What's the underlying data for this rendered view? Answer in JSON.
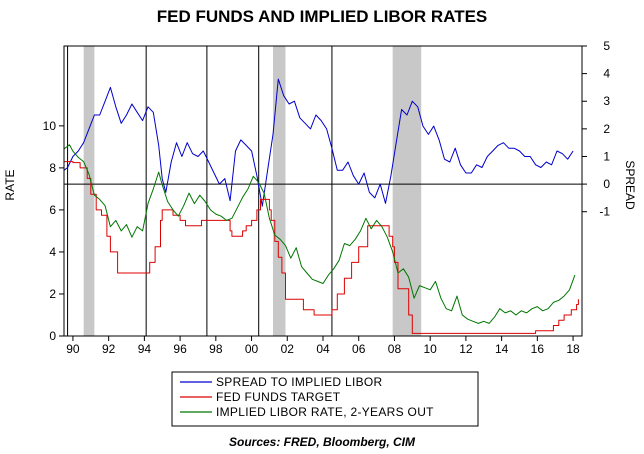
{
  "chart_data": {
    "type": "line",
    "title": "FED FUNDS AND IMPLIED LIBOR RATES",
    "source": "Sources:  FRED, Bloomberg, CIM",
    "left_axis": {
      "label": "RATE",
      "range": [
        0,
        13.8
      ],
      "ticks": [
        0,
        2,
        4,
        6,
        8,
        10
      ]
    },
    "right_axis": {
      "label": "SPREAD",
      "range": [
        -5.5,
        5
      ],
      "ticks": [
        -1,
        0,
        1,
        2,
        3,
        4,
        5
      ]
    },
    "x_axis": {
      "range": [
        1989.5,
        2018.5
      ],
      "ticks": [
        1990,
        1992,
        1994,
        1996,
        1998,
        2000,
        2002,
        2004,
        2006,
        2008,
        2010,
        2012,
        2014,
        2016,
        2018
      ],
      "tick_labels": [
        "90",
        "92",
        "94",
        "96",
        "98",
        "00",
        "02",
        "04",
        "06",
        "08",
        "10",
        "12",
        "14",
        "16",
        "18"
      ]
    },
    "recessions": [
      [
        1990.6,
        1991.2
      ],
      [
        2001.2,
        2001.9
      ],
      [
        2007.9,
        2009.5
      ]
    ],
    "vertical_lines": [
      1989.7,
      1994.1,
      1997.5,
      2000.4,
      2004.5
    ],
    "zero_line_spread": 0,
    "legend": [
      "SPREAD TO IMPLIED LIBOR",
      "FED FUNDS TARGET",
      "IMPLIED LIBOR RATE, 2-YEARS OUT"
    ],
    "colors": {
      "spread": "#0000cc",
      "fedfunds": "#dd0000",
      "libor": "#007700",
      "recession": "#c8c8c8"
    },
    "series": [
      {
        "name": "SPREAD TO IMPLIED LIBOR",
        "axis": "right",
        "color": "#0000cc",
        "x": [
          1989.5,
          1989.7,
          1990.0,
          1990.3,
          1990.6,
          1990.9,
          1991.2,
          1991.5,
          1991.8,
          1992.1,
          1992.4,
          1992.7,
          1993.0,
          1993.3,
          1993.6,
          1993.9,
          1994.2,
          1994.5,
          1994.8,
          1995.0,
          1995.2,
          1995.5,
          1995.8,
          1996.1,
          1996.4,
          1996.7,
          1997.0,
          1997.3,
          1997.6,
          1997.9,
          1998.2,
          1998.5,
          1998.8,
          1999.1,
          1999.4,
          1999.7,
          2000.0,
          2000.3,
          2000.6,
          2000.9,
          2001.2,
          2001.5,
          2001.8,
          2002.1,
          2002.4,
          2002.7,
          2003.0,
          2003.3,
          2003.6,
          2003.9,
          2004.2,
          2004.5,
          2004.8,
          2005.1,
          2005.4,
          2005.7,
          2006.0,
          2006.3,
          2006.6,
          2006.9,
          2007.2,
          2007.5,
          2007.8,
          2008.1,
          2008.4,
          2008.7,
          2009.0,
          2009.3,
          2009.6,
          2009.9,
          2010.2,
          2010.5,
          2010.8,
          2011.1,
          2011.4,
          2011.7,
          2012.0,
          2012.3,
          2012.6,
          2012.9,
          2013.2,
          2013.5,
          2013.8,
          2014.1,
          2014.4,
          2014.7,
          2015.0,
          2015.3,
          2015.6,
          2015.9,
          2016.2,
          2016.5,
          2016.8,
          2017.1,
          2017.4,
          2017.7,
          2018.0
        ],
        "y": [
          0.5,
          0.6,
          1.0,
          1.2,
          1.5,
          2.0,
          2.5,
          2.5,
          3.0,
          3.5,
          2.8,
          2.2,
          2.5,
          2.9,
          2.6,
          2.3,
          2.8,
          2.6,
          1.4,
          0.2,
          -0.3,
          0.8,
          1.5,
          1.0,
          1.5,
          1.1,
          1.0,
          1.2,
          0.8,
          0.4,
          0.0,
          0.2,
          -0.6,
          1.2,
          1.6,
          1.4,
          1.2,
          0.3,
          -0.8,
          0.5,
          1.8,
          3.8,
          3.2,
          2.9,
          3.0,
          2.4,
          2.2,
          2.0,
          2.5,
          2.3,
          2.0,
          1.3,
          0.5,
          0.5,
          0.8,
          0.3,
          0.0,
          0.4,
          -0.3,
          -0.5,
          0.0,
          -0.7,
          0.3,
          1.5,
          2.7,
          2.5,
          3.0,
          2.8,
          2.1,
          1.8,
          2.1,
          1.6,
          0.9,
          0.8,
          1.3,
          0.7,
          0.4,
          0.4,
          0.7,
          0.6,
          1.0,
          1.2,
          1.4,
          1.5,
          1.3,
          1.3,
          1.2,
          1.0,
          1.0,
          0.7,
          0.6,
          0.8,
          0.7,
          1.2,
          1.1,
          0.9,
          1.2
        ]
      },
      {
        "name": "FED FUNDS TARGET",
        "axis": "left",
        "color": "#dd0000",
        "step": true,
        "x": [
          1989.5,
          1990.0,
          1990.4,
          1990.8,
          1991.0,
          1991.3,
          1991.6,
          1991.9,
          1992.1,
          1992.5,
          1994.1,
          1994.3,
          1994.6,
          1994.9,
          1995.0,
          1995.6,
          1996.0,
          1996.3,
          1997.2,
          1998.8,
          1998.9,
          1999.0,
          1999.5,
          1999.7,
          2000.0,
          2000.3,
          2000.5,
          2001.0,
          2001.1,
          2001.3,
          2001.5,
          2001.7,
          2001.9,
          2002.9,
          2003.5,
          2004.5,
          2004.8,
          2005.2,
          2005.6,
          2006.0,
          2006.5,
          2007.7,
          2007.9,
          2008.0,
          2008.2,
          2008.8,
          2009.0,
          2015.9,
          2016.9,
          2017.2,
          2017.5,
          2017.9,
          2018.2,
          2018.3
        ],
        "y": [
          8.3,
          8.25,
          8.0,
          7.5,
          6.75,
          6.0,
          5.75,
          4.75,
          4.0,
          3.0,
          3.0,
          3.5,
          4.25,
          5.5,
          6.0,
          5.75,
          5.5,
          5.25,
          5.5,
          5.0,
          4.75,
          4.75,
          5.0,
          5.25,
          5.5,
          6.0,
          6.5,
          6.0,
          5.5,
          4.5,
          3.75,
          3.0,
          1.75,
          1.25,
          1.0,
          1.25,
          2.0,
          2.75,
          3.5,
          4.25,
          5.25,
          4.75,
          4.25,
          3.5,
          2.25,
          1.0,
          0.125,
          0.25,
          0.5,
          0.75,
          1.0,
          1.25,
          1.5,
          1.75
        ]
      },
      {
        "name": "IMPLIED LIBOR RATE, 2-YEARS OUT",
        "axis": "left",
        "color": "#007700",
        "x": [
          1989.5,
          1989.8,
          1990.0,
          1990.3,
          1990.6,
          1990.9,
          1991.2,
          1991.5,
          1991.8,
          1992.1,
          1992.4,
          1992.7,
          1993.0,
          1993.3,
          1993.6,
          1993.9,
          1994.2,
          1994.5,
          1994.8,
          1995.0,
          1995.3,
          1995.6,
          1995.9,
          1996.2,
          1996.5,
          1996.8,
          1997.1,
          1997.4,
          1997.7,
          1998.0,
          1998.3,
          1998.6,
          1998.9,
          1999.2,
          1999.5,
          1999.8,
          2000.1,
          2000.4,
          2000.7,
          2001.0,
          2001.3,
          2001.6,
          2001.9,
          2002.2,
          2002.5,
          2002.8,
          2003.1,
          2003.4,
          2003.7,
          2004.0,
          2004.3,
          2004.6,
          2004.9,
          2005.2,
          2005.5,
          2005.8,
          2006.1,
          2006.4,
          2006.7,
          2007.0,
          2007.3,
          2007.6,
          2007.9,
          2008.2,
          2008.5,
          2008.8,
          2009.1,
          2009.4,
          2009.7,
          2010.0,
          2010.3,
          2010.6,
          2010.9,
          2011.2,
          2011.5,
          2011.8,
          2012.1,
          2012.4,
          2012.7,
          2013.0,
          2013.3,
          2013.6,
          2013.9,
          2014.2,
          2014.5,
          2014.8,
          2015.1,
          2015.4,
          2015.7,
          2016.0,
          2016.3,
          2016.6,
          2016.9,
          2017.2,
          2017.5,
          2017.8,
          2018.1
        ],
        "y": [
          8.9,
          9.1,
          8.8,
          8.5,
          8.3,
          7.7,
          6.7,
          6.5,
          6.2,
          5.2,
          5.5,
          5.0,
          5.3,
          4.7,
          5.2,
          5.0,
          6.3,
          7.0,
          7.8,
          7.2,
          6.4,
          6.0,
          5.7,
          6.2,
          6.8,
          6.3,
          6.7,
          6.4,
          6.0,
          5.8,
          5.7,
          5.5,
          5.6,
          6.1,
          6.6,
          7.0,
          7.6,
          7.3,
          6.8,
          5.6,
          4.8,
          4.6,
          4.3,
          3.7,
          4.2,
          3.3,
          3.0,
          2.7,
          2.6,
          2.5,
          2.9,
          3.2,
          3.6,
          4.4,
          4.3,
          4.6,
          5.0,
          5.6,
          5.1,
          5.5,
          5.2,
          4.7,
          4.0,
          3.0,
          3.2,
          2.8,
          1.8,
          2.4,
          2.3,
          2.2,
          2.6,
          1.8,
          1.3,
          1.2,
          1.9,
          1.0,
          0.8,
          0.7,
          0.6,
          0.7,
          0.6,
          0.9,
          1.3,
          1.1,
          1.2,
          1.0,
          1.2,
          1.1,
          1.3,
          1.4,
          1.2,
          1.3,
          1.6,
          1.7,
          1.9,
          2.2,
          2.9
        ]
      }
    ]
  }
}
